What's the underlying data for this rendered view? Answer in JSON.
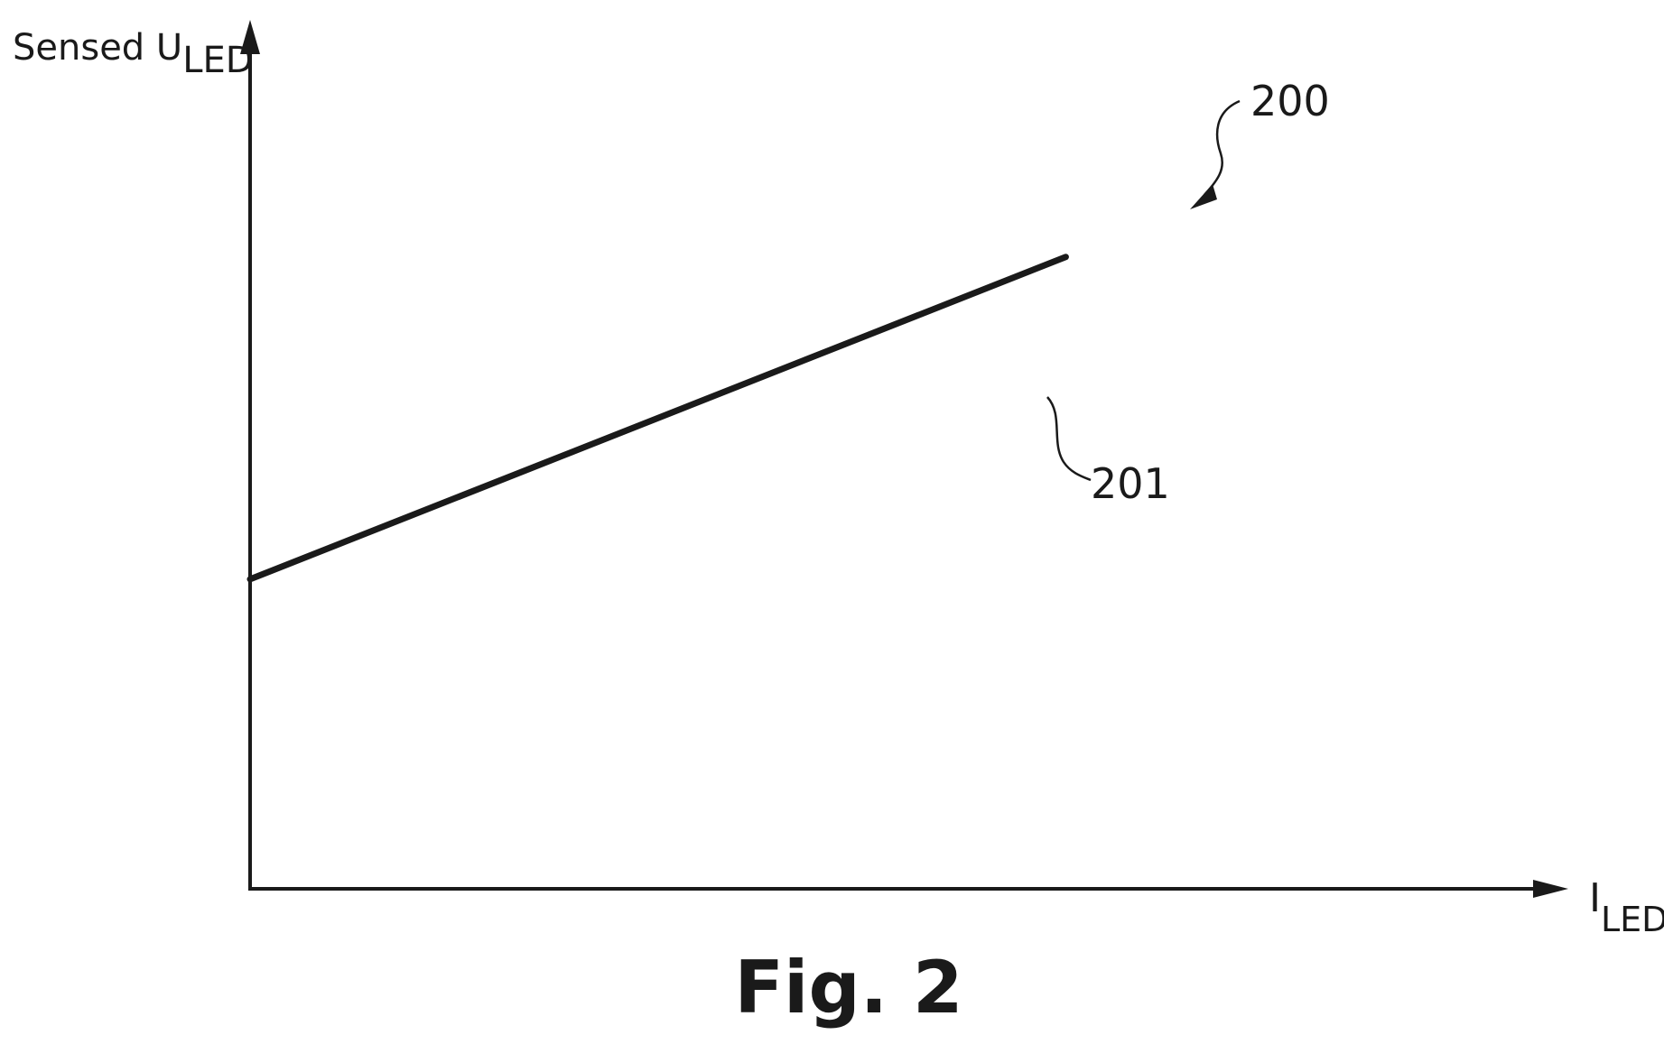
{
  "figure": {
    "caption": "Fig. 2",
    "reference_numeral": "200"
  },
  "chart_data": {
    "type": "line",
    "title": "",
    "ylabel_main": "Sensed U",
    "ylabel_sub": "LED",
    "xlabel_main": "I",
    "xlabel_sub": "LED",
    "xlim": [
      0,
      1
    ],
    "ylim": [
      0,
      1
    ],
    "grid": false,
    "series": [
      {
        "label": "201",
        "x": [
          0,
          0.657
        ],
        "y": [
          0.367,
          0.749
        ]
      }
    ]
  }
}
